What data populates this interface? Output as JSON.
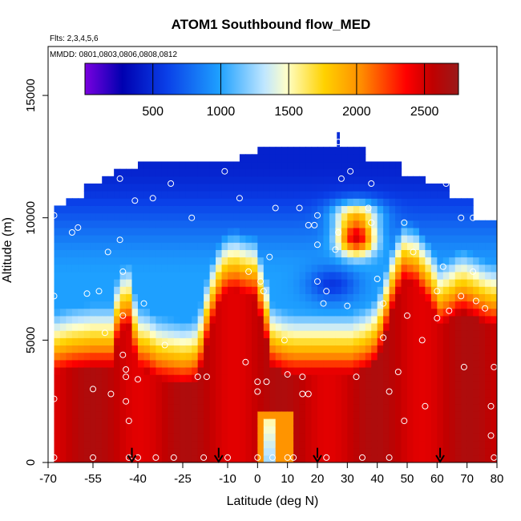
{
  "chart_data": {
    "type": "heatmap",
    "title": "ATOM1 Southbound flow_MED",
    "annotations": [
      "Flts: 2,3,4,5,6",
      "MMDD: 0801,0803,0806,0808,0812"
    ],
    "xlabel": "Latitude (deg N)",
    "ylabel": "Altitude (m)",
    "xlim": [
      -70,
      80
    ],
    "ylim": [
      0,
      17000
    ],
    "x_ticks": [
      -70,
      -55,
      -40,
      -25,
      -10,
      0,
      10,
      20,
      30,
      40,
      50,
      60,
      70,
      80
    ],
    "x_tick_labels": [
      "-70",
      "-55",
      "-40",
      "-25",
      "-10",
      "0",
      "10",
      "20",
      "30",
      "40",
      "50",
      "60",
      "70",
      "80"
    ],
    "y_ticks": [
      0,
      5000,
      10000,
      15000
    ],
    "y_tick_labels": [
      "0",
      "5000",
      "10000",
      "15000"
    ],
    "colorbar": {
      "min": 0,
      "max": 2750,
      "ticks": [
        500,
        1000,
        1500,
        2000,
        2500
      ],
      "tick_labels": [
        "500",
        "1000",
        "1500",
        "2000",
        "2500"
      ],
      "colors": [
        "#7a00e0",
        "#0000b0",
        "#0a40e8",
        "#1ea0ff",
        "#bfe6ff",
        "#ffffc8",
        "#ffd200",
        "#ff8c00",
        "#ff0000",
        "#c00000",
        "#9a1a1a"
      ]
    },
    "grid": false,
    "legend": "colorbar at top",
    "arrow_latitudes": [
      -42,
      -13,
      20,
      61
    ],
    "observation_points": [
      [
        -68,
        10100
      ],
      [
        -68,
        6800
      ],
      [
        -68,
        2600
      ],
      [
        -68,
        200
      ],
      [
        -62,
        9400
      ],
      [
        -60,
        9600
      ],
      [
        -57,
        6900
      ],
      [
        -55,
        3000
      ],
      [
        -55,
        200
      ],
      [
        -53,
        7000
      ],
      [
        -51,
        5300
      ],
      [
        -50,
        8600
      ],
      [
        -49,
        2800
      ],
      [
        -46,
        11600
      ],
      [
        -46,
        9100
      ],
      [
        -45,
        7800
      ],
      [
        -45,
        6000
      ],
      [
        -45,
        4400
      ],
      [
        -44,
        3800
      ],
      [
        -44,
        3500
      ],
      [
        -44,
        2500
      ],
      [
        -43,
        1700
      ],
      [
        -43,
        200
      ],
      [
        -41,
        10700
      ],
      [
        -40,
        3400
      ],
      [
        -40,
        200
      ],
      [
        -38,
        6500
      ],
      [
        -35,
        10800
      ],
      [
        -34,
        200
      ],
      [
        -31,
        4800
      ],
      [
        -28,
        200
      ],
      [
        -29,
        11400
      ],
      [
        -22,
        10000
      ],
      [
        -20,
        3500
      ],
      [
        -18,
        200
      ],
      [
        -17,
        3500
      ],
      [
        -10,
        200
      ],
      [
        -11,
        11900
      ],
      [
        -6,
        10800
      ],
      [
        -4,
        4100
      ],
      [
        -3,
        7800
      ],
      [
        0,
        3300
      ],
      [
        0,
        2900
      ],
      [
        0,
        200
      ],
      [
        1,
        7400
      ],
      [
        2,
        7000
      ],
      [
        3,
        3300
      ],
      [
        4,
        8400
      ],
      [
        5,
        200
      ],
      [
        6,
        10400
      ],
      [
        9,
        5000
      ],
      [
        10,
        3600
      ],
      [
        10,
        200
      ],
      [
        12,
        200
      ],
      [
        14,
        10400
      ],
      [
        15,
        3500
      ],
      [
        15,
        2800
      ],
      [
        17,
        9700
      ],
      [
        17,
        2800
      ],
      [
        19,
        9700
      ],
      [
        20,
        10100
      ],
      [
        20,
        8900
      ],
      [
        20,
        7400
      ],
      [
        22,
        6500
      ],
      [
        23,
        7000
      ],
      [
        23,
        200
      ],
      [
        26,
        8700
      ],
      [
        27,
        13100
      ],
      [
        27,
        9400
      ],
      [
        28,
        11600
      ],
      [
        30,
        6400
      ],
      [
        31,
        11900
      ],
      [
        33,
        3500
      ],
      [
        35,
        200
      ],
      [
        38,
        11400
      ],
      [
        37,
        10400
      ],
      [
        38,
        9800
      ],
      [
        40,
        7500
      ],
      [
        42,
        6500
      ],
      [
        42,
        5100
      ],
      [
        44,
        2900
      ],
      [
        44,
        200
      ],
      [
        47,
        3700
      ],
      [
        49,
        9800
      ],
      [
        49,
        1700
      ],
      [
        50,
        6000
      ],
      [
        52,
        8600
      ],
      [
        55,
        5000
      ],
      [
        56,
        2300
      ],
      [
        60,
        7000
      ],
      [
        60,
        5900
      ],
      [
        62,
        8000
      ],
      [
        63,
        11400
      ],
      [
        64,
        6200
      ],
      [
        68,
        10000
      ],
      [
        68,
        6800
      ],
      [
        69,
        3900
      ],
      [
        72,
        10000
      ],
      [
        72,
        7800
      ],
      [
        73,
        6600
      ],
      [
        76,
        6300
      ],
      [
        78,
        2300
      ],
      [
        78,
        1100
      ],
      [
        79,
        3900
      ],
      [
        79,
        200
      ]
    ],
    "field_note": "Color = mixing height (colorbar units); upper envelope of data near 12000–13500 m around 20–40 deg N, ~10500 m at southern and northern edges; low values (blue) aloft, high values (red) below ~4000 m."
  }
}
